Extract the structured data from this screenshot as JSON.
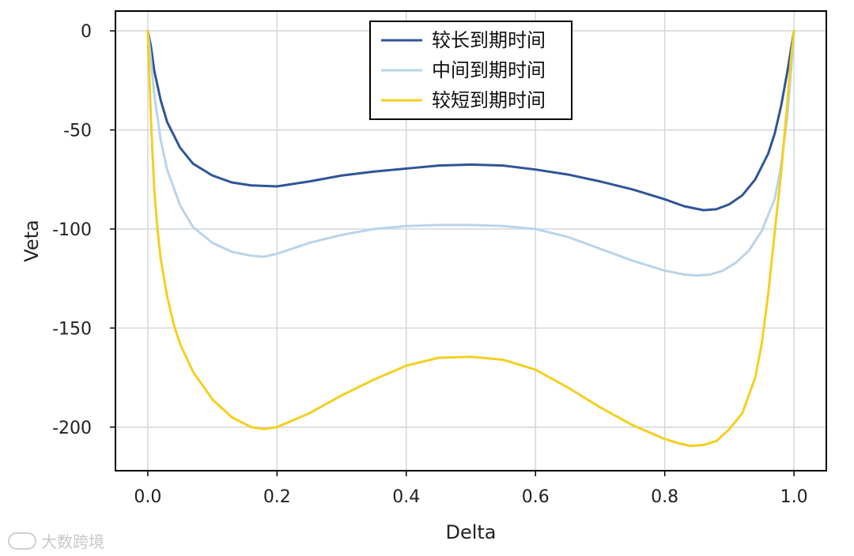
{
  "watermark": "大数跨境",
  "chart_data": {
    "type": "line",
    "title": "",
    "xlabel": "Delta",
    "ylabel": "Veta",
    "xlim": [
      -0.05,
      1.05
    ],
    "ylim": [
      -222,
      10
    ],
    "xticks": [
      0.0,
      0.2,
      0.4,
      0.6,
      0.8,
      1.0
    ],
    "xtick_labels": [
      "0.0",
      "0.2",
      "0.4",
      "0.6",
      "0.8",
      "1.0"
    ],
    "yticks": [
      0,
      -50,
      -100,
      -150,
      -200
    ],
    "ytick_labels": [
      "0",
      "-50",
      "-100",
      "-150",
      "-200"
    ],
    "grid": true,
    "legend_position": "top-center",
    "series": [
      {
        "name": "较长到期时间",
        "color": "#2f5597",
        "x": [
          0.0,
          0.005,
          0.01,
          0.02,
          0.03,
          0.05,
          0.07,
          0.1,
          0.13,
          0.16,
          0.2,
          0.25,
          0.3,
          0.35,
          0.4,
          0.45,
          0.5,
          0.55,
          0.6,
          0.65,
          0.7,
          0.75,
          0.8,
          0.83,
          0.86,
          0.88,
          0.9,
          0.92,
          0.94,
          0.96,
          0.97,
          0.98,
          0.99,
          0.995,
          1.0
        ],
        "y": [
          0,
          -8,
          -20,
          -35,
          -46,
          -59,
          -67,
          -73,
          -76.5,
          -78,
          -78.5,
          -76,
          -73,
          -71,
          -69.5,
          -68,
          -67.5,
          -68,
          -70,
          -72.5,
          -76,
          -80,
          -85,
          -88.5,
          -90.5,
          -90,
          -87.5,
          -83,
          -75,
          -62,
          -52,
          -38,
          -20,
          -10,
          0
        ]
      },
      {
        "name": "中间到期时间",
        "color": "#b9d4ea",
        "x": [
          0.0,
          0.005,
          0.01,
          0.02,
          0.03,
          0.05,
          0.07,
          0.1,
          0.13,
          0.16,
          0.18,
          0.2,
          0.25,
          0.3,
          0.35,
          0.4,
          0.45,
          0.5,
          0.55,
          0.6,
          0.65,
          0.7,
          0.75,
          0.8,
          0.83,
          0.85,
          0.87,
          0.89,
          0.91,
          0.93,
          0.95,
          0.97,
          0.98,
          0.99,
          0.995,
          1.0
        ],
        "y": [
          0,
          -15,
          -32,
          -55,
          -70,
          -88,
          -99,
          -107,
          -111.5,
          -113.5,
          -114,
          -112.5,
          -107,
          -103,
          -100,
          -98.5,
          -98,
          -98,
          -98.5,
          -100,
          -104,
          -110,
          -116,
          -121,
          -123,
          -123.5,
          -123,
          -121,
          -117,
          -111,
          -101,
          -85,
          -68,
          -42,
          -22,
          0
        ]
      },
      {
        "name": "较短到期时间",
        "color": "#f5cf1f",
        "x": [
          0.0,
          0.005,
          0.01,
          0.015,
          0.02,
          0.03,
          0.04,
          0.05,
          0.07,
          0.1,
          0.13,
          0.16,
          0.18,
          0.2,
          0.25,
          0.3,
          0.35,
          0.4,
          0.45,
          0.5,
          0.55,
          0.6,
          0.65,
          0.7,
          0.75,
          0.8,
          0.82,
          0.84,
          0.86,
          0.88,
          0.9,
          0.92,
          0.94,
          0.95,
          0.96,
          0.97,
          0.98,
          0.99,
          0.995,
          1.0
        ],
        "y": [
          0,
          -45,
          -80,
          -100,
          -115,
          -134,
          -148,
          -158,
          -172,
          -186,
          -195,
          -200,
          -201,
          -200,
          -193,
          -184,
          -176,
          -169,
          -165,
          -164.5,
          -166,
          -171,
          -180,
          -190,
          -199,
          -206,
          -208,
          -209.5,
          -209,
          -207,
          -201,
          -193,
          -175,
          -158,
          -133,
          -102,
          -72,
          -35,
          -15,
          0
        ]
      }
    ]
  }
}
